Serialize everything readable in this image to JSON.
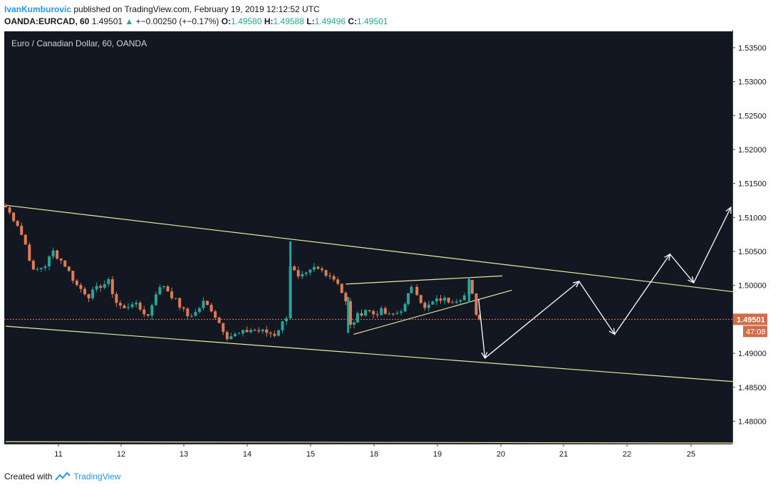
{
  "header": {
    "author": "IvanKumburovic",
    "published": " published on TradingView.com, February 19, 2019 12:12:52 UTC",
    "symbol": "OANDA:EURCAD, 60",
    "last": "1.49501",
    "change": "+−0.00250 (+−0.17%)",
    "o_label": "O:",
    "o": "1.49580",
    "h_label": "H:",
    "h": "1.49588",
    "l_label": "L:",
    "l": "1.49496",
    "c_label": "C:",
    "c": "1.49501"
  },
  "footer": {
    "created": "Created with",
    "brand": "TradingView"
  },
  "colors": {
    "bg": "#131722",
    "up": "#26a69a",
    "down": "#e07b53",
    "trendline": "#e6ee9c",
    "arrow": "#ffffff",
    "price_tag": "#d16b48",
    "price_line": "#e07b53"
  },
  "chart_data": {
    "type": "candlestick",
    "title": "Euro / Canadian Dollar, 60, OANDA",
    "y_ticks": [
      "1.53500",
      "1.53000",
      "1.52500",
      "1.52000",
      "1.51500",
      "1.51000",
      "1.50500",
      "1.50000",
      "1.49500",
      "1.49000",
      "1.48500",
      "1.48000"
    ],
    "x_ticks": [
      "11",
      "12",
      "13",
      "14",
      "15",
      "18",
      "19",
      "20",
      "21",
      "22",
      "25"
    ],
    "ylim": [
      1.4767,
      1.5374
    ],
    "last_price": "1.49501",
    "countdown": "47:08",
    "path_points": [
      [
        0.0,
        1.5115
      ],
      [
        1.5,
        1.509
      ],
      [
        2.5,
        1.506
      ],
      [
        3.5,
        1.502
      ],
      [
        5.0,
        1.503
      ],
      [
        6.0,
        1.505
      ],
      [
        7.5,
        1.503
      ],
      [
        9.0,
        1.5
      ],
      [
        10.5,
        1.4985
      ],
      [
        12.0,
        1.5
      ],
      [
        13.0,
        1.5005
      ],
      [
        14.0,
        1.4975
      ],
      [
        15.0,
        1.4965
      ],
      [
        16.0,
        1.4975
      ],
      [
        17.0,
        1.4965
      ],
      [
        18.0,
        1.4955
      ],
      [
        19.0,
        1.499
      ],
      [
        20.0,
        1.5
      ],
      [
        21.0,
        1.4985
      ],
      [
        22.0,
        1.497
      ],
      [
        23.0,
        1.4955
      ],
      [
        24.0,
        1.496
      ],
      [
        25.0,
        1.4975
      ],
      [
        26.0,
        1.4965
      ],
      [
        27.0,
        1.4945
      ],
      [
        28.0,
        1.4925
      ],
      [
        29.5,
        1.4928
      ],
      [
        31.0,
        1.4935
      ],
      [
        32.5,
        1.4932
      ],
      [
        34.0,
        1.4928
      ],
      [
        35.0,
        1.4945
      ],
      [
        35.5,
        1.4955
      ],
      [
        36.0,
        1.503
      ],
      [
        37.0,
        1.501
      ],
      [
        38.0,
        1.5015
      ],
      [
        39.0,
        1.5025
      ],
      [
        40.0,
        1.5022
      ],
      [
        41.0,
        1.5015
      ],
      [
        42.0,
        1.5005
      ],
      [
        43.0,
        1.4975
      ],
      [
        43.6,
        1.494
      ],
      [
        44.5,
        1.4955
      ],
      [
        45.5,
        1.4965
      ],
      [
        46.5,
        1.4958
      ],
      [
        47.5,
        1.4962
      ],
      [
        48.5,
        1.4955
      ],
      [
        49.5,
        1.496
      ],
      [
        50.5,
        1.497
      ],
      [
        51.3,
        1.5
      ],
      [
        52.0,
        1.499
      ],
      [
        53.0,
        1.4965
      ],
      [
        54.0,
        1.4975
      ],
      [
        55.0,
        1.498
      ],
      [
        56.0,
        1.4978
      ],
      [
        57.0,
        1.498
      ],
      [
        58.0,
        1.4985
      ],
      [
        58.6,
        1.5005
      ],
      [
        59.0,
        1.4985
      ],
      [
        59.5,
        1.496
      ],
      [
        59.9,
        1.49501
      ]
    ],
    "spike_wicks": [
      [
        36.0,
        1.5065,
        1.4955
      ],
      [
        58.6,
        1.501,
        1.4975
      ],
      [
        43.3,
        1.4983,
        1.493
      ]
    ],
    "trendlines": [
      {
        "x1": 0,
        "y1": 1.5118,
        "x2": 92.5,
        "y2": 1.499
      },
      {
        "x1": 0,
        "y1": 1.494,
        "x2": 92.5,
        "y2": 1.4858
      },
      {
        "x1": 43,
        "y1": 1.5002,
        "x2": 62.8,
        "y2": 1.5014
      },
      {
        "x1": 44,
        "y1": 1.4928,
        "x2": 64,
        "y2": 1.4993
      },
      {
        "x1": 0,
        "y1": 1.477,
        "x2": 92.5,
        "y2": 1.4768
      }
    ],
    "projection": [
      [
        59.8,
        1.498
      ],
      [
        60.6,
        1.4893
      ],
      [
        72.5,
        1.5006
      ],
      [
        77.0,
        1.4928
      ],
      [
        84.0,
        1.5046
      ],
      [
        87.0,
        1.5004
      ],
      [
        91.7,
        1.5115
      ]
    ]
  }
}
